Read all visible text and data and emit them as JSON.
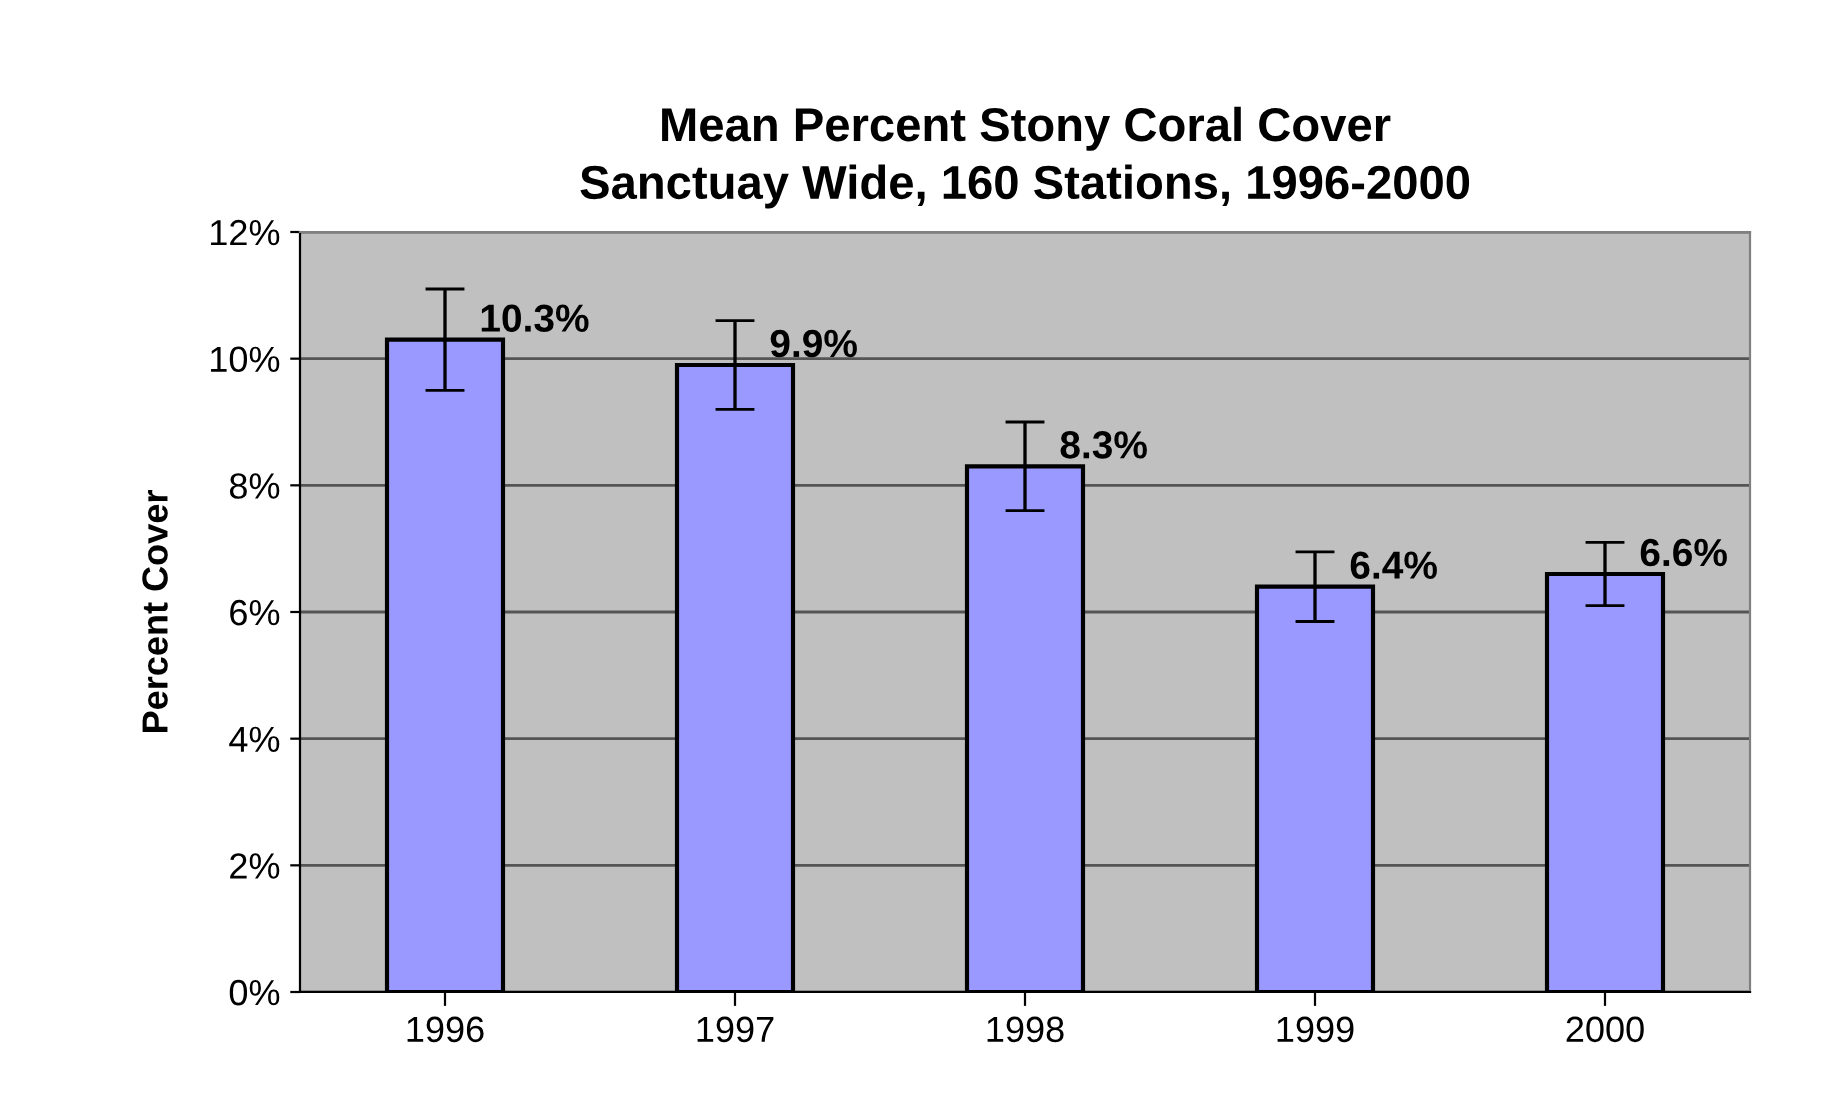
{
  "chart_data": {
    "type": "bar",
    "title": "Mean Percent Stony Coral Cover\nSanctuay Wide, 160 Stations, 1996-2000",
    "ylabel": "Percent Cover",
    "categories": [
      "1996",
      "1997",
      "1998",
      "1999",
      "2000"
    ],
    "values": [
      10.3,
      9.9,
      8.3,
      6.4,
      6.6
    ],
    "errors": [
      0.8,
      0.7,
      0.7,
      0.55,
      0.5
    ],
    "value_labels": [
      "10.3%",
      "9.9%",
      "8.3%",
      "6.4%",
      "6.6%"
    ],
    "color": "#9999ff",
    "ylim": [
      0,
      12
    ],
    "yticks": [
      {
        "value": 0,
        "label": "0%"
      },
      {
        "value": 2,
        "label": "2%"
      },
      {
        "value": 4,
        "label": "4%"
      },
      {
        "value": 6,
        "label": "6%"
      },
      {
        "value": 8,
        "label": "8%"
      },
      {
        "value": 10,
        "label": "10%"
      },
      {
        "value": 12,
        "label": "12%"
      }
    ],
    "grid": "y",
    "legend": false
  }
}
